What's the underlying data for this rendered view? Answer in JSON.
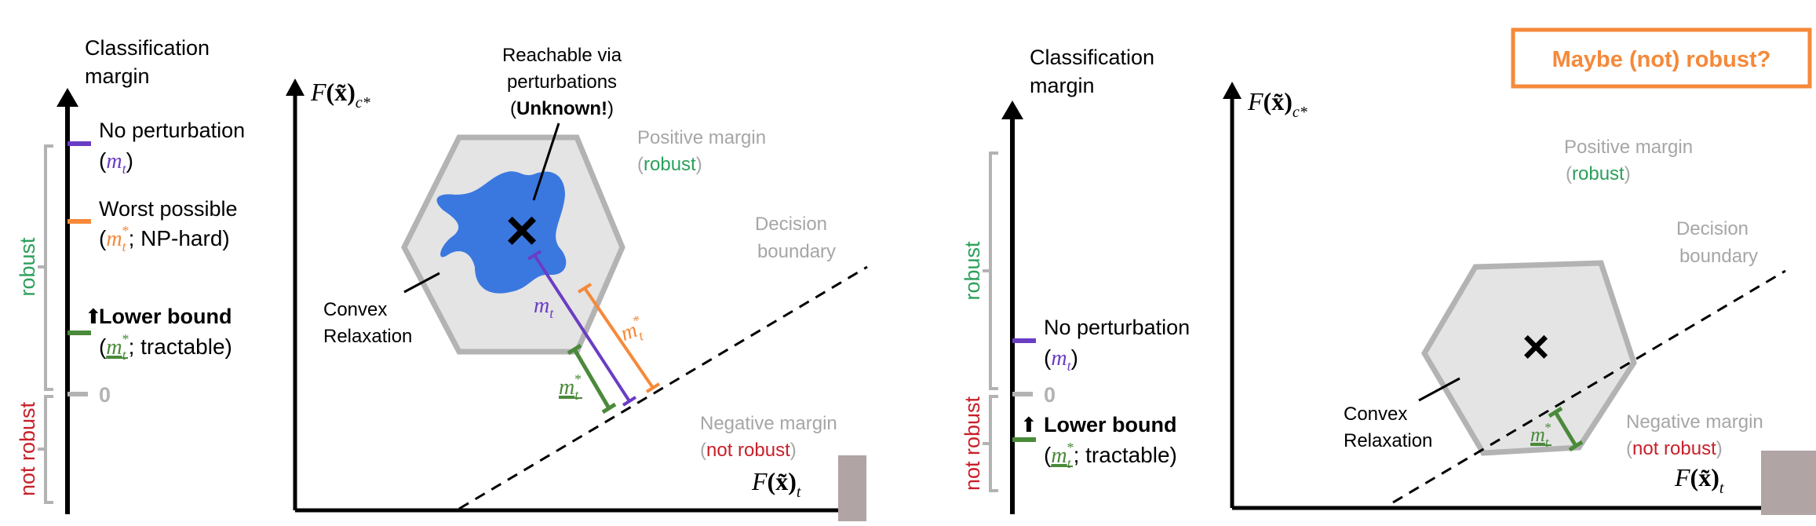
{
  "colors": {
    "axis": "#000000",
    "purple": "#6a3dc4",
    "orange": "#f5893a",
    "green": "#4a8a3a",
    "gray_text": "#a6a6a6",
    "robust_green": "#2ca05a",
    "not_robust_red": "#c8202a",
    "hexagon_fill": "#e4e4e4",
    "hexagon_stroke": "#b3b3b3",
    "blob": "#3a78e0",
    "callout_border": "#f5893a",
    "callout_text": "#f5893a"
  },
  "left_panel": {
    "margin_axis": {
      "title_line1": "Classification",
      "title_line2": "margin",
      "robust_label": "robust",
      "not_robust_label": "not robust",
      "zero_label": "0",
      "no_perturbation": {
        "line1": "No perturbation",
        "var": "m",
        "sub": "t"
      },
      "worst_possible": {
        "line1": "Worst possible",
        "var": "m",
        "sub": "t",
        "sup": "*",
        "suffix": "; NP-hard"
      },
      "lower_bound": {
        "line1": "Lower bound",
        "var": "m",
        "sub": "t",
        "sup": "*",
        "suffix": "; tractable"
      }
    },
    "plot": {
      "y_axis_label": {
        "fn": "F",
        "arg": "(x̃)",
        "sub": "c*"
      },
      "x_axis_label": {
        "fn": "F",
        "arg": "(x̃)",
        "sub": "t"
      },
      "reachable": {
        "line1": "Reachable via",
        "line2": "perturbations",
        "line3_open": "(",
        "line3_bold": "Unknown!",
        "line3_close": ")"
      },
      "positive_margin": {
        "line1": "Positive margin",
        "robust": "robust"
      },
      "decision_boundary": {
        "line1": "Decision",
        "line2": "boundary"
      },
      "convex_relaxation": {
        "line1": "Convex",
        "line2": "Relaxation"
      },
      "negative_margin": {
        "line1": "Negative margin",
        "not_robust": "not robust"
      },
      "m_label": {
        "var": "m",
        "sub": "t"
      },
      "m_star_label": {
        "var": "m",
        "sub": "t",
        "sup": "*"
      },
      "m_star_lower_label": {
        "var": "m",
        "sub": "t",
        "sup": "*"
      },
      "x_mark": "×"
    }
  },
  "right_panel": {
    "callout": "Maybe (not) robust?",
    "margin_axis": {
      "title_line1": "Classification",
      "title_line2": "margin",
      "robust_label": "robust",
      "not_robust_label": "not robust",
      "zero_label": "0",
      "no_perturbation": {
        "line1": "No perturbation",
        "var": "m",
        "sub": "t"
      },
      "lower_bound": {
        "line1": "Lower bound",
        "var": "m",
        "sub": "t",
        "sup": "*",
        "suffix": "; tractable"
      }
    },
    "plot": {
      "y_axis_label": {
        "fn": "F",
        "arg": "(x̃)",
        "sub": "c*"
      },
      "x_axis_label": {
        "fn": "F",
        "arg": "(x̃)",
        "sub": "t"
      },
      "positive_margin": {
        "line1": "Positive margin",
        "robust": "robust"
      },
      "decision_boundary": {
        "line1": "Decision",
        "line2": "boundary"
      },
      "convex_relaxation": {
        "line1": "Convex",
        "line2": "Relaxation"
      },
      "negative_margin": {
        "line1": "Negative margin",
        "not_robust": "not robust"
      },
      "m_star_lower_label": {
        "var": "m",
        "sub": "t",
        "sup": "*"
      },
      "x_mark": "×"
    }
  }
}
